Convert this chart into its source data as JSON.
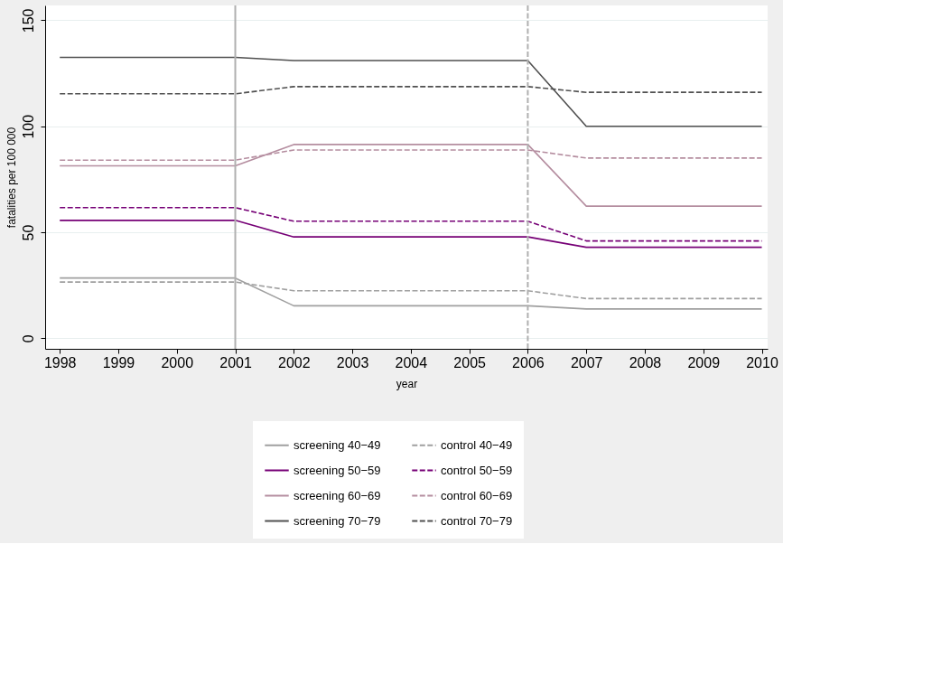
{
  "chart_data": {
    "type": "line",
    "xlabel": "year",
    "ylabel": "fatalities per 100 000",
    "x": [
      1998,
      1999,
      2000,
      2001,
      2002,
      2003,
      2004,
      2005,
      2006,
      2007,
      2008,
      2009,
      2010
    ],
    "xlim": [
      1997.75,
      2010.1
    ],
    "xticks": [
      1998,
      1999,
      2000,
      2001,
      2002,
      2003,
      2004,
      2005,
      2006,
      2007,
      2008,
      2009,
      2010
    ],
    "ylim": [
      -5,
      157
    ],
    "yticks": [
      0,
      50,
      100,
      150
    ],
    "grid": "y",
    "legend": "bottom",
    "marker": "none",
    "series": [
      {
        "name": "screening 40−49",
        "color": "#a0a0a0",
        "line_style": "solid",
        "values": [
          28.4,
          28.4,
          28.4,
          28.4,
          15.3,
          15.3,
          15.3,
          15.3,
          15.3,
          13.8,
          13.8,
          13.8,
          13.8
        ]
      },
      {
        "name": "control 40−49",
        "color": "#a0a0a0",
        "line_style": "dashed",
        "values": [
          26.5,
          26.5,
          26.5,
          26.5,
          22.4,
          22.4,
          22.4,
          22.4,
          22.4,
          18.7,
          18.7,
          18.7,
          18.7
        ]
      },
      {
        "name": "screening 50−59",
        "color": "#760076",
        "line_style": "solid",
        "values": [
          55.6,
          55.6,
          55.6,
          55.6,
          47.8,
          47.8,
          47.8,
          47.8,
          47.8,
          42.9,
          42.9,
          42.9,
          42.9
        ]
      },
      {
        "name": "control 50−59",
        "color": "#760076",
        "line_style": "dashed",
        "values": [
          61.6,
          61.6,
          61.6,
          61.6,
          55.2,
          55.2,
          55.2,
          55.2,
          55.2,
          45.9,
          45.9,
          45.9,
          45.9
        ]
      },
      {
        "name": "screening 60−69",
        "color": "#b58ea0",
        "line_style": "solid",
        "values": [
          81.3,
          81.3,
          81.3,
          81.3,
          91.4,
          91.4,
          91.4,
          91.4,
          91.4,
          62.3,
          62.3,
          62.3,
          62.3
        ]
      },
      {
        "name": "control 60−69",
        "color": "#b58ea0",
        "line_style": "dashed",
        "values": [
          84,
          84,
          84,
          84,
          88.8,
          88.8,
          88.8,
          88.8,
          88.8,
          85,
          85,
          85,
          85
        ]
      },
      {
        "name": "screening 70−79",
        "color": "#505050",
        "line_style": "solid",
        "values": [
          132.5,
          132.5,
          132.5,
          132.5,
          131,
          131,
          131,
          131,
          131,
          100,
          100,
          100,
          100
        ]
      },
      {
        "name": "control 70−79",
        "color": "#505050",
        "line_style": "dashed",
        "values": [
          115.3,
          115.3,
          115.3,
          115.3,
          118.7,
          118.7,
          118.7,
          118.7,
          118.7,
          116,
          116,
          116,
          116
        ]
      }
    ],
    "ref_lines": [
      {
        "axis": "x",
        "value": 2001,
        "color": "#b0b0b0",
        "line_style": "solid"
      },
      {
        "axis": "x",
        "value": 2006,
        "color": "#b0b0b0",
        "line_style": "dashed"
      }
    ]
  }
}
